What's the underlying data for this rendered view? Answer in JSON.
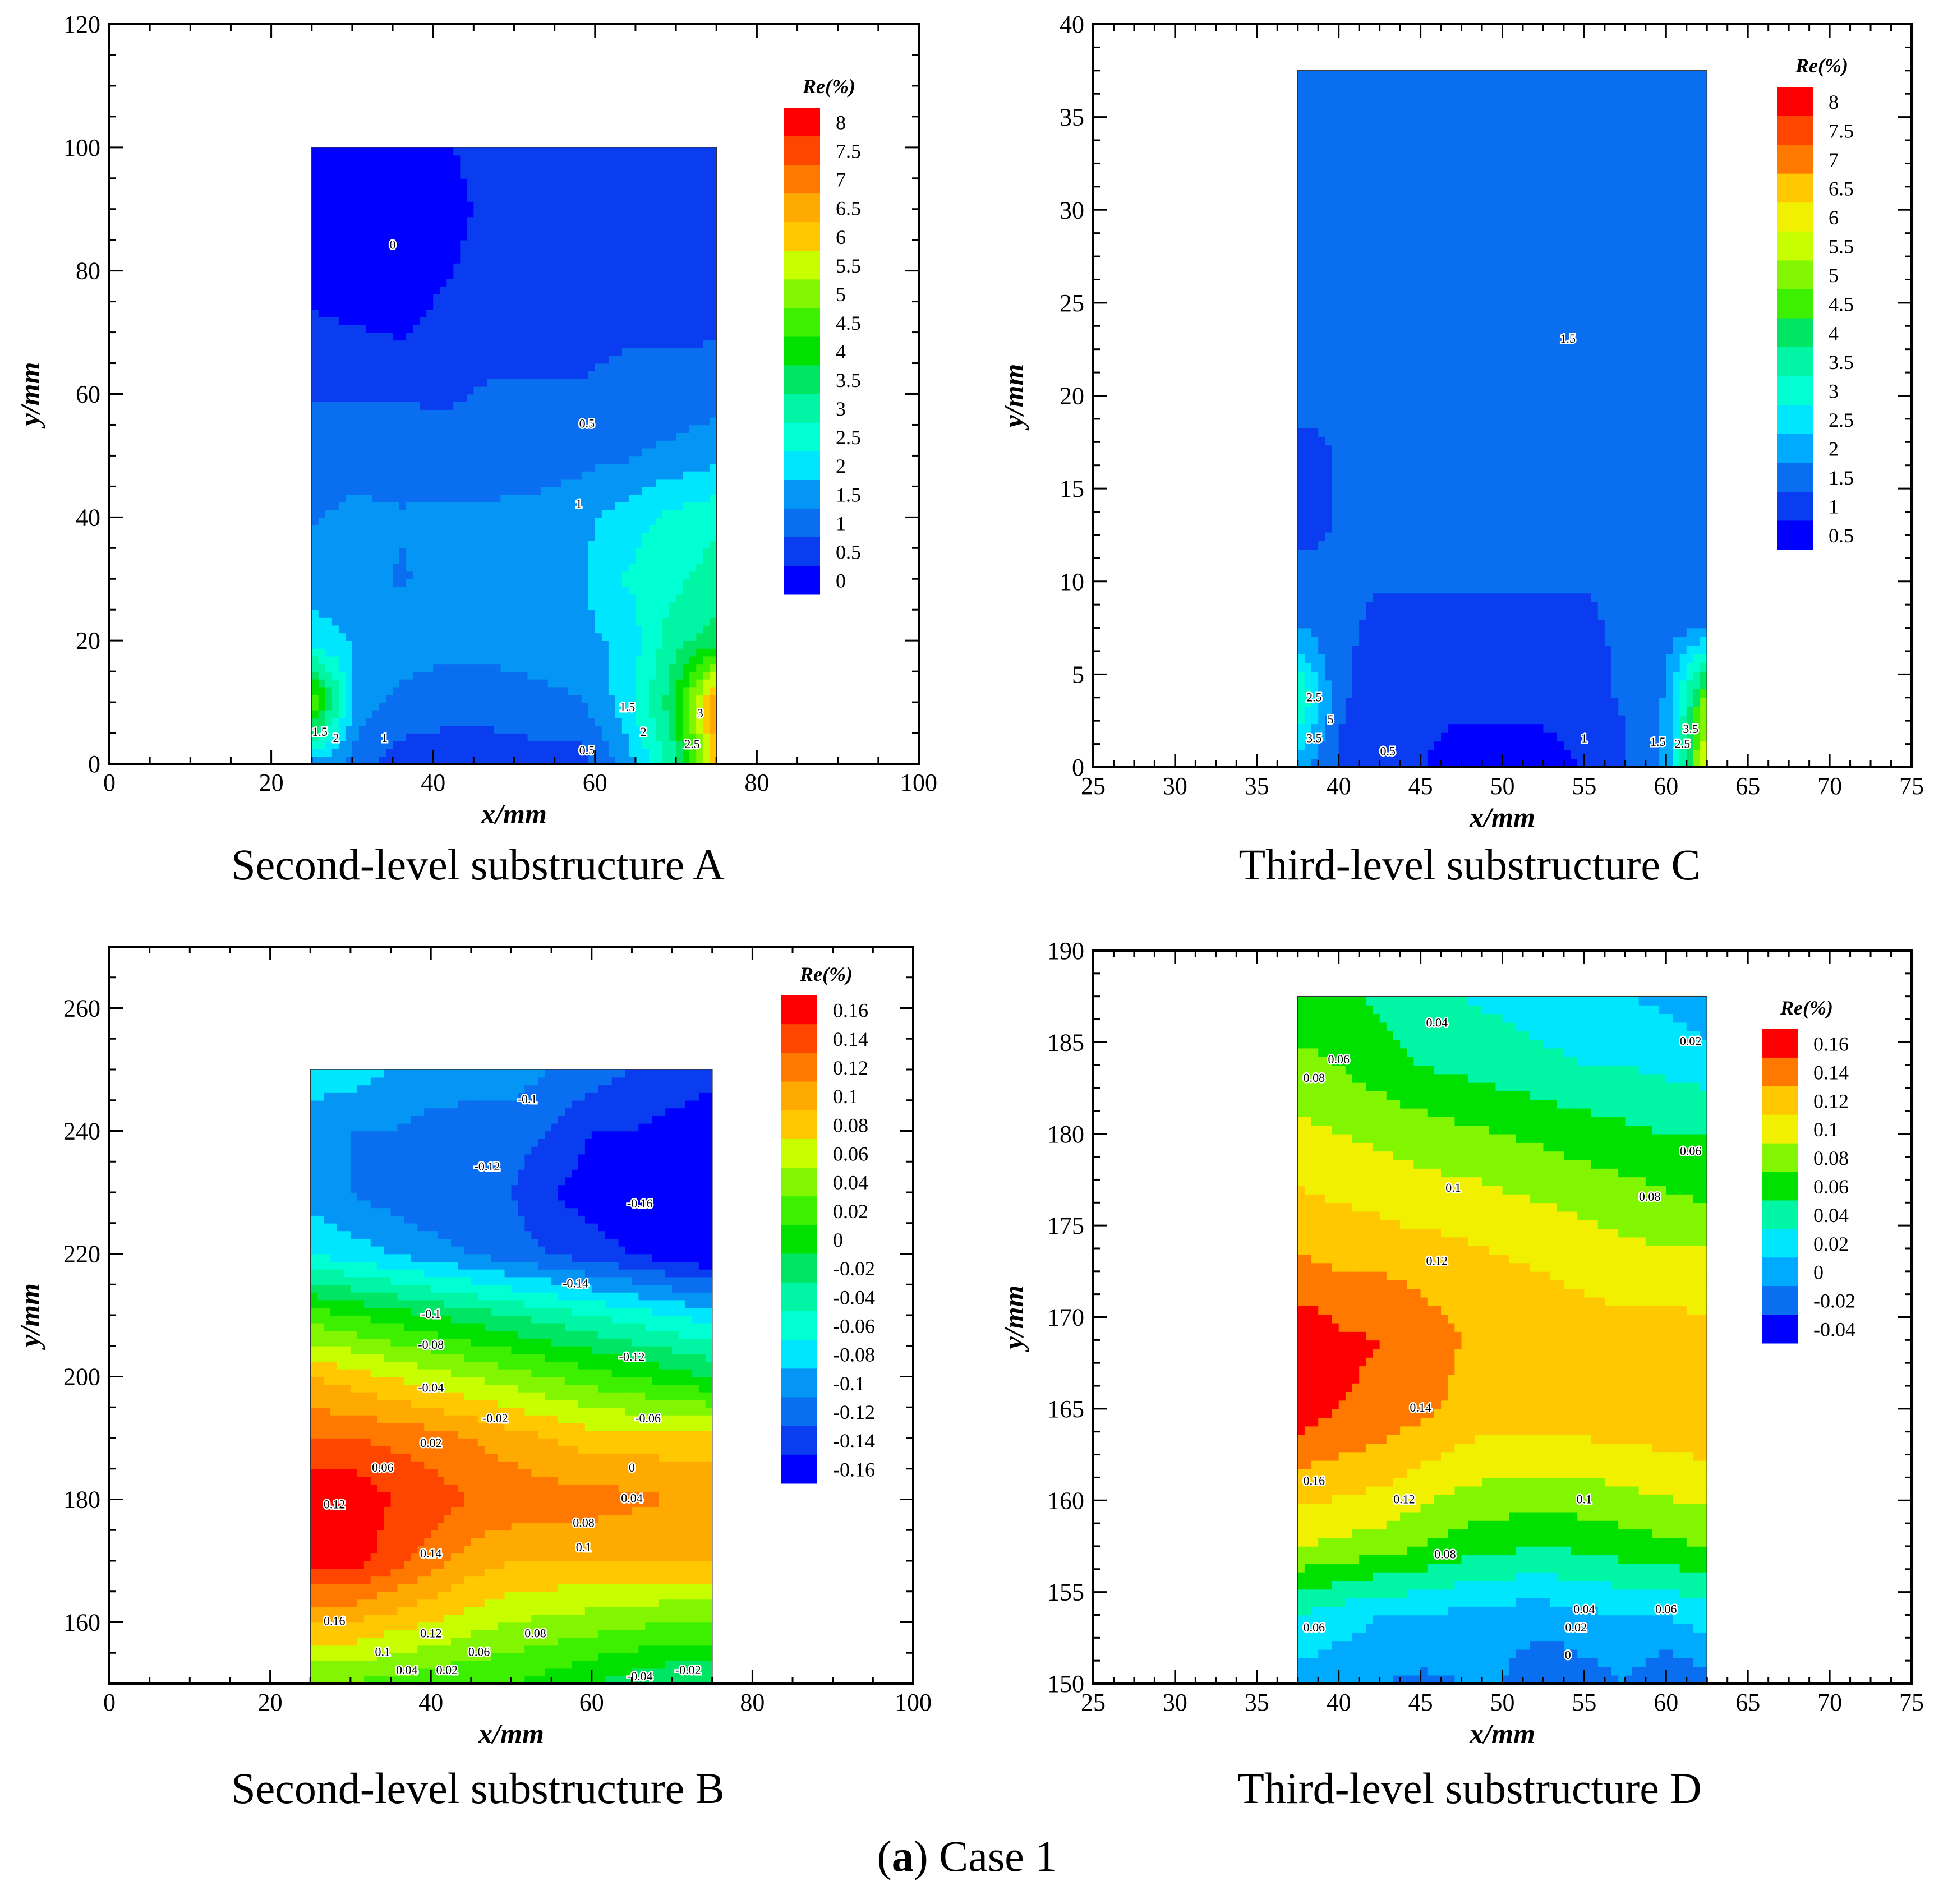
{
  "figure_caption": {
    "label": "a",
    "text": "Case 1"
  },
  "colors": {
    "palette": [
      "#0000ff",
      "#0a3cf0",
      "#0a6ef0",
      "#0596f5",
      "#00aaff",
      "#00e6ff",
      "#00ffd2",
      "#00f5a5",
      "#00e664",
      "#00e100",
      "#3cf000",
      "#82f500",
      "#c8ff00",
      "#f0f000",
      "#ffc800",
      "#ffaa00",
      "#ff7800",
      "#ff4600",
      "#ff0000"
    ]
  },
  "chart_data": [
    {
      "id": "A",
      "type": "heatmap",
      "subtype": "contour",
      "title": "Second-level substructure A",
      "xlabel": "x/mm",
      "ylabel": "y/mm",
      "xlim": [
        0,
        100
      ],
      "ylim": [
        0,
        120
      ],
      "xticks": [
        "0",
        "20",
        "40",
        "60",
        "80",
        "100"
      ],
      "yticks": [
        "0",
        "20",
        "40",
        "60",
        "80",
        "100",
        "120"
      ],
      "region": {
        "x": [
          25,
          75
        ],
        "y": [
          0,
          100
        ]
      },
      "colorbar": {
        "title": "Re(%)",
        "levels": [
          "8",
          "7.5",
          "7",
          "6.5",
          "6",
          "5.5",
          "5",
          "4.5",
          "4",
          "3.5",
          "3",
          "2.5",
          "2",
          "1.5",
          "1",
          "0.5",
          "0"
        ]
      },
      "contour_labels": [
        {
          "text": "0",
          "x": 35,
          "y": 84
        },
        {
          "text": "0.5",
          "x": 59,
          "y": 55
        },
        {
          "text": "1",
          "x": 58,
          "y": 42
        },
        {
          "text": "1.5",
          "x": 64,
          "y": 9
        },
        {
          "text": "1",
          "x": 34,
          "y": 4
        },
        {
          "text": "2",
          "x": 66,
          "y": 5
        },
        {
          "text": "2.5",
          "x": 72,
          "y": 3
        },
        {
          "text": "0.5",
          "x": 59,
          "y": 2
        },
        {
          "text": "1.5",
          "x": 26,
          "y": 5
        },
        {
          "text": "2",
          "x": 28,
          "y": 4
        },
        {
          "text": "3",
          "x": 73,
          "y": 8
        }
      ],
      "field": [
        [
          1.5,
          1.0,
          0.5,
          0.4,
          0.4,
          0.5,
          0.5,
          1.5,
          3.0,
          6.0
        ],
        [
          5.0,
          1.5,
          1.1,
          1.0,
          1.0,
          1.1,
          1.2,
          2.0,
          3.5,
          7.0
        ],
        [
          2.0,
          1.7,
          1.5,
          1.4,
          1.4,
          1.5,
          1.6,
          1.9,
          3.0,
          3.5
        ],
        [
          1.5,
          1.4,
          1.2,
          1.4,
          1.4,
          1.5,
          1.7,
          2.3,
          2.6,
          3.0
        ],
        [
          1.2,
          1.4,
          1.3,
          1.4,
          1.4,
          1.4,
          1.6,
          2.0,
          2.4,
          2.6
        ],
        [
          1.0,
          1.0,
          1.0,
          0.9,
          0.9,
          1.0,
          1.1,
          1.2,
          1.4,
          1.6
        ],
        [
          0.7,
          0.7,
          0.7,
          0.7,
          0.8,
          0.8,
          0.8,
          0.9,
          0.9,
          1.0
        ],
        [
          0.4,
          0.3,
          0.2,
          0.5,
          0.6,
          0.6,
          0.6,
          0.7,
          0.7,
          0.7
        ],
        [
          0.0,
          -0.2,
          -0.2,
          0.2,
          0.6,
          0.6,
          0.6,
          0.6,
          0.6,
          0.6
        ],
        [
          -0.3,
          -0.5,
          -0.4,
          -0.1,
          0.5,
          0.6,
          0.6,
          0.6,
          0.6,
          0.6
        ],
        [
          -0.3,
          -0.4,
          -0.3,
          0.2,
          0.6,
          0.6,
          0.6,
          0.6,
          0.6,
          0.6
        ]
      ]
    },
    {
      "id": "C",
      "type": "heatmap",
      "subtype": "contour",
      "title": "Third-level substructure C",
      "xlabel": "x/mm",
      "ylabel": "y/mm",
      "xlim": [
        25,
        75
      ],
      "ylim": [
        0,
        40
      ],
      "xticks": [
        "25",
        "30",
        "35",
        "40",
        "45",
        "50",
        "55",
        "60",
        "65",
        "70",
        "75"
      ],
      "yticks": [
        "0",
        "5",
        "10",
        "15",
        "20",
        "25",
        "30",
        "35",
        "40"
      ],
      "region": {
        "x": [
          37.5,
          62.5
        ],
        "y": [
          0,
          37.5
        ]
      },
      "colorbar": {
        "title": "Re(%)",
        "levels": [
          "8",
          "7.5",
          "7",
          "6.5",
          "6",
          "5.5",
          "5",
          "4.5",
          "4",
          "3.5",
          "3",
          "2.5",
          "2",
          "1.5",
          "1",
          "0.5"
        ]
      },
      "contour_labels": [
        {
          "text": "1.5",
          "x": 54,
          "y": 23
        },
        {
          "text": "1",
          "x": 55,
          "y": 1.5
        },
        {
          "text": "0.5",
          "x": 43,
          "y": 0.8
        },
        {
          "text": "1.5",
          "x": 59.5,
          "y": 1.3
        },
        {
          "text": "2.5",
          "x": 38.5,
          "y": 3.7
        },
        {
          "text": "3.5",
          "x": 38.5,
          "y": 1.5
        },
        {
          "text": "5",
          "x": 39.5,
          "y": 2.5
        },
        {
          "text": "2.5",
          "x": 61,
          "y": 1.2
        },
        {
          "text": "3.5",
          "x": 61.5,
          "y": 2
        }
      ],
      "field": [
        [
          2.0,
          1.2,
          1.0,
          0.8,
          0.3,
          0.3,
          0.4,
          0.8,
          1.2,
          1.8,
          6.0
        ],
        [
          3.5,
          1.3,
          1.1,
          1.0,
          1.0,
          1.0,
          1.0,
          1.1,
          1.3,
          1.8,
          5.0
        ],
        [
          1.8,
          1.3,
          1.2,
          1.2,
          1.2,
          1.2,
          1.2,
          1.2,
          1.3,
          1.5,
          1.8
        ],
        [
          1.3,
          1.3,
          1.3,
          1.3,
          1.3,
          1.3,
          1.3,
          1.3,
          1.3,
          1.3,
          1.3
        ],
        [
          0.8,
          1.3,
          1.3,
          1.3,
          1.3,
          1.3,
          1.3,
          1.3,
          1.3,
          1.4,
          1.4
        ],
        [
          1.3,
          1.3,
          1.3,
          1.3,
          1.3,
          1.3,
          1.3,
          1.3,
          1.3,
          1.45,
          1.55
        ],
        [
          1.3,
          1.3,
          1.3,
          1.3,
          1.3,
          1.3,
          1.3,
          1.4,
          1.6,
          1.7,
          1.7
        ],
        [
          1.3,
          1.3,
          1.3,
          1.3,
          1.3,
          1.3,
          1.3,
          1.55,
          1.7,
          1.7,
          1.7
        ],
        [
          1.3,
          1.3,
          1.3,
          1.3,
          1.3,
          1.3,
          1.3,
          1.45,
          1.6,
          1.7,
          1.7
        ],
        [
          1.3,
          1.3,
          1.3,
          1.3,
          1.3,
          1.3,
          1.3,
          1.3,
          1.4,
          1.5,
          1.6
        ],
        [
          1.3,
          1.3,
          1.3,
          1.3,
          1.3,
          1.3,
          1.3,
          1.3,
          1.3,
          1.3,
          1.3
        ]
      ]
    },
    {
      "id": "B",
      "type": "heatmap",
      "subtype": "contour",
      "title": "Second-level substructure B",
      "xlabel": "x/mm",
      "ylabel": "y/mm",
      "xlim": [
        0,
        100
      ],
      "ylim": [
        150,
        270
      ],
      "xticks": [
        "0",
        "20",
        "40",
        "60",
        "80",
        "100"
      ],
      "yticks": [
        "160",
        "180",
        "200",
        "220",
        "240",
        "260"
      ],
      "region": {
        "x": [
          25,
          75
        ],
        "y": [
          150,
          250
        ]
      },
      "colorbar": {
        "title": "Re(%)",
        "levels": [
          "0.16",
          "0.14",
          "0.12",
          "0.1",
          "0.08",
          "0.06",
          "0.04",
          "0.02",
          "0",
          "-0.02",
          "-0.04",
          "-0.06",
          "-0.08",
          "-0.1",
          "-0.12",
          "-0.14",
          "-0.16"
        ]
      },
      "contour_labels": [
        {
          "text": "-0.1",
          "x": 52,
          "y": 245
        },
        {
          "text": "-0.12",
          "x": 47,
          "y": 234
        },
        {
          "text": "-0.16",
          "x": 66,
          "y": 228
        },
        {
          "text": "-0.14",
          "x": 58,
          "y": 215
        },
        {
          "text": "-0.1",
          "x": 40,
          "y": 210
        },
        {
          "text": "-0.08",
          "x": 40,
          "y": 205
        },
        {
          "text": "-0.12",
          "x": 65,
          "y": 203
        },
        {
          "text": "-0.04",
          "x": 40,
          "y": 198
        },
        {
          "text": "-0.02",
          "x": 48,
          "y": 193
        },
        {
          "text": "-0.06",
          "x": 67,
          "y": 193
        },
        {
          "text": "0.02",
          "x": 40,
          "y": 189
        },
        {
          "text": "0",
          "x": 65,
          "y": 185
        },
        {
          "text": "0.06",
          "x": 34,
          "y": 185
        },
        {
          "text": "0.04",
          "x": 65,
          "y": 180
        },
        {
          "text": "0.12",
          "x": 28,
          "y": 179
        },
        {
          "text": "0.08",
          "x": 59,
          "y": 176
        },
        {
          "text": "0.1",
          "x": 59,
          "y": 172
        },
        {
          "text": "0.14",
          "x": 40,
          "y": 171
        },
        {
          "text": "0.16",
          "x": 28,
          "y": 160
        },
        {
          "text": "0.12",
          "x": 40,
          "y": 158
        },
        {
          "text": "0.08",
          "x": 53,
          "y": 158
        },
        {
          "text": "0.1",
          "x": 34,
          "y": 155
        },
        {
          "text": "0.06",
          "x": 46,
          "y": 155
        },
        {
          "text": "0.04",
          "x": 37,
          "y": 152
        },
        {
          "text": "0.02",
          "x": 42,
          "y": 152
        },
        {
          "text": "-0.02",
          "x": 72,
          "y": 152
        },
        {
          "text": "-0.04",
          "x": 66,
          "y": 151
        }
      ],
      "field": [
        [
          0.03,
          0.03,
          0.02,
          0.02,
          0.01,
          0.01,
          0.0,
          -0.01,
          -0.02,
          -0.03,
          -0.03
        ],
        [
          0.09,
          0.09,
          0.08,
          0.07,
          0.06,
          0.05,
          0.045,
          0.04,
          0.035,
          0.03,
          0.03
        ],
        [
          0.16,
          0.16,
          0.14,
          0.12,
          0.1,
          0.09,
          0.09,
          0.09,
          0.09,
          0.09,
          0.09
        ],
        [
          0.17,
          0.17,
          0.15,
          0.14,
          0.13,
          0.125,
          0.12,
          0.12,
          0.115,
          0.11,
          0.11
        ],
        [
          0.13,
          0.13,
          0.125,
          0.12,
          0.11,
          0.1,
          0.09,
          0.08,
          0.08,
          0.08,
          0.08
        ],
        [
          0.09,
          0.08,
          0.07,
          0.06,
          0.05,
          0.04,
          0.03,
          0.02,
          0.01,
          0.0,
          -0.01
        ],
        [
          0.02,
          0.01,
          0.0,
          -0.01,
          -0.02,
          -0.03,
          -0.04,
          -0.05,
          -0.06,
          -0.07,
          -0.08
        ],
        [
          -0.07,
          -0.08,
          -0.09,
          -0.1,
          -0.11,
          -0.12,
          -0.13,
          -0.14,
          -0.15,
          -0.16,
          -0.17
        ],
        [
          -0.1,
          -0.11,
          -0.12,
          -0.13,
          -0.13,
          -0.13,
          -0.15,
          -0.16,
          -0.17,
          -0.17,
          -0.18
        ],
        [
          -0.1,
          -0.11,
          -0.11,
          -0.12,
          -0.12,
          -0.12,
          -0.13,
          -0.15,
          -0.15,
          -0.16,
          -0.17
        ],
        [
          -0.08,
          -0.08,
          -0.09,
          -0.09,
          -0.1,
          -0.1,
          -0.11,
          -0.12,
          -0.13,
          -0.13,
          -0.14
        ]
      ]
    },
    {
      "id": "D",
      "type": "heatmap",
      "subtype": "contour",
      "title": "Third-level substructure D",
      "xlabel": "x/mm",
      "ylabel": "y/mm",
      "xlim": [
        25,
        75
      ],
      "ylim": [
        150,
        190
      ],
      "xticks": [
        "25",
        "30",
        "35",
        "40",
        "45",
        "50",
        "55",
        "60",
        "65",
        "70",
        "75"
      ],
      "yticks": [
        "150",
        "155",
        "160",
        "165",
        "170",
        "175",
        "180",
        "185",
        "190"
      ],
      "region": {
        "x": [
          37.5,
          62.5
        ],
        "y": [
          150,
          187.5
        ]
      },
      "colorbar": {
        "title": "Re(%)",
        "levels": [
          "0.16",
          "0.14",
          "0.12",
          "0.1",
          "0.08",
          "0.06",
          "0.04",
          "0.02",
          "0",
          "-0.02",
          "-0.04"
        ]
      },
      "contour_labels": [
        {
          "text": "0.04",
          "x": 46,
          "y": 186
        },
        {
          "text": "0.06",
          "x": 40,
          "y": 184
        },
        {
          "text": "0.02",
          "x": 61.5,
          "y": 185
        },
        {
          "text": "0.08",
          "x": 38.5,
          "y": 183
        },
        {
          "text": "0.06",
          "x": 61.5,
          "y": 179
        },
        {
          "text": "0.1",
          "x": 47,
          "y": 177
        },
        {
          "text": "0.08",
          "x": 59,
          "y": 176.5
        },
        {
          "text": "0.12",
          "x": 46,
          "y": 173
        },
        {
          "text": "0.14",
          "x": 45,
          "y": 165
        },
        {
          "text": "0.16",
          "x": 38.5,
          "y": 161
        },
        {
          "text": "0.12",
          "x": 44,
          "y": 160
        },
        {
          "text": "0.1",
          "x": 55,
          "y": 160
        },
        {
          "text": "0.08",
          "x": 46.5,
          "y": 157
        },
        {
          "text": "0.04",
          "x": 55,
          "y": 154
        },
        {
          "text": "0.06",
          "x": 60,
          "y": 154
        },
        {
          "text": "0.02",
          "x": 54.5,
          "y": 153
        },
        {
          "text": "0.06",
          "x": 38.5,
          "y": 153
        },
        {
          "text": "0",
          "x": 54,
          "y": 151.5
        }
      ],
      "field": [
        [
          0.0,
          -0.005,
          -0.01,
          -0.015,
          -0.01,
          -0.01,
          -0.03,
          -0.02,
          -0.01,
          -0.03,
          -0.02
        ],
        [
          0.03,
          0.02,
          0.01,
          0.01,
          0.005,
          0.0,
          0.0,
          0.005,
          0.01,
          0.01,
          0.02
        ],
        [
          0.09,
          0.085,
          0.08,
          0.07,
          0.06,
          0.055,
          0.05,
          0.055,
          0.06,
          0.065,
          0.07
        ],
        [
          0.125,
          0.12,
          0.115,
          0.105,
          0.095,
          0.09,
          0.09,
          0.09,
          0.095,
          0.1,
          0.105
        ],
        [
          0.165,
          0.15,
          0.145,
          0.135,
          0.125,
          0.12,
          0.12,
          0.125,
          0.125,
          0.125,
          0.125
        ],
        [
          0.17,
          0.155,
          0.15,
          0.14,
          0.13,
          0.125,
          0.125,
          0.12,
          0.12,
          0.12,
          0.115
        ],
        [
          0.135,
          0.13,
          0.13,
          0.125,
          0.12,
          0.115,
          0.11,
          0.105,
          0.1,
          0.1,
          0.1
        ],
        [
          0.115,
          0.11,
          0.105,
          0.1,
          0.1,
          0.095,
          0.09,
          0.085,
          0.08,
          0.075,
          0.07
        ],
        [
          0.095,
          0.09,
          0.085,
          0.08,
          0.075,
          0.07,
          0.065,
          0.06,
          0.055,
          0.05,
          0.05
        ],
        [
          0.075,
          0.07,
          0.06,
          0.05,
          0.045,
          0.04,
          0.035,
          0.03,
          0.03,
          0.025,
          0.02
        ],
        [
          0.06,
          0.055,
          0.045,
          0.035,
          0.03,
          0.025,
          0.02,
          0.015,
          0.01,
          0.005,
          -0.005
        ]
      ]
    }
  ]
}
